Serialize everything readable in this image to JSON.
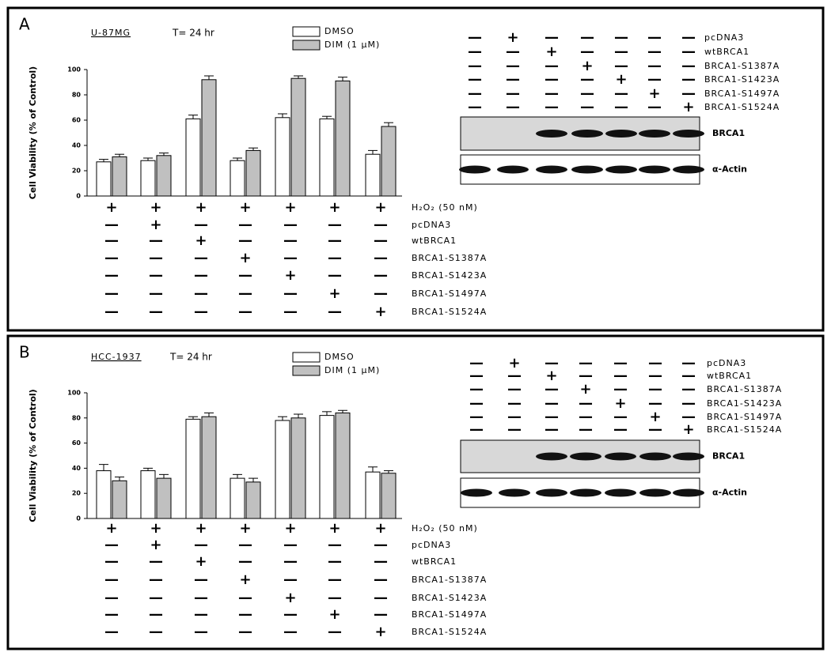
{
  "chart_data": [
    {
      "type": "bar",
      "panel_label": "A",
      "cell_line": "U-87MG",
      "time_label": "T= 24 hr",
      "ylabel": "Cell Viability (% of Control)",
      "series": [
        {
          "name": "DMSO",
          "color": "#ffffff",
          "values": [
            27,
            28,
            61,
            28,
            62,
            61,
            33
          ],
          "errors": [
            2,
            2,
            3,
            2,
            3,
            2,
            3
          ]
        },
        {
          "name": "DIM (1 μM)",
          "color": "#c0c0c0",
          "values": [
            31,
            32,
            92,
            36,
            93,
            91,
            55
          ],
          "errors": [
            2,
            2,
            3,
            2,
            2,
            3,
            3
          ]
        }
      ],
      "ylim": [
        0,
        100
      ],
      "yticks": [
        0,
        20,
        40,
        60,
        80,
        100
      ],
      "treatments": {
        "labels": [
          "H₂O₂ (50 nM)",
          "pcDNA3",
          "wtBRCA1",
          "BRCA1-S1387A",
          "BRCA1-S1423A",
          "BRCA1-S1497A",
          "BRCA1-S1524A"
        ],
        "signs": [
          [
            "+",
            "+",
            "+",
            "+",
            "+",
            "+",
            "+"
          ],
          [
            "—",
            "+",
            "—",
            "—",
            "—",
            "—",
            "—"
          ],
          [
            "—",
            "—",
            "+",
            "—",
            "—",
            "—",
            "—"
          ],
          [
            "—",
            "—",
            "—",
            "+",
            "—",
            "—",
            "—"
          ],
          [
            "—",
            "—",
            "—",
            "—",
            "+",
            "—",
            "—"
          ],
          [
            "—",
            "—",
            "—",
            "—",
            "—",
            "+",
            "—"
          ],
          [
            "—",
            "—",
            "—",
            "—",
            "—",
            "—",
            "+"
          ]
        ]
      },
      "blot": {
        "labels": [
          "pcDNA3",
          "wtBRCA1",
          "BRCA1-S1387A",
          "BRCA1-S1423A",
          "BRCA1-S1497A",
          "BRCA1-S1524A"
        ],
        "signs": [
          [
            "—",
            "+",
            "—",
            "—",
            "—",
            "—",
            "—"
          ],
          [
            "—",
            "—",
            "+",
            "—",
            "—",
            "—",
            "—"
          ],
          [
            "—",
            "—",
            "—",
            "+",
            "—",
            "—",
            "—"
          ],
          [
            "—",
            "—",
            "—",
            "—",
            "+",
            "—",
            "—"
          ],
          [
            "—",
            "—",
            "—",
            "—",
            "—",
            "+",
            "—"
          ],
          [
            "—",
            "—",
            "—",
            "—",
            "—",
            "—",
            "+"
          ]
        ],
        "bands": [
          "BRCA1",
          "α-Actin"
        ]
      }
    },
    {
      "type": "bar",
      "panel_label": "B",
      "cell_line": "HCC-1937",
      "time_label": "T= 24 hr",
      "ylabel": "Cell Viability (% of Control)",
      "series": [
        {
          "name": "DMSO",
          "color": "#ffffff",
          "values": [
            38,
            38,
            79,
            32,
            78,
            82,
            37
          ],
          "errors": [
            5,
            2,
            2,
            3,
            3,
            3,
            4
          ]
        },
        {
          "name": "DIM (1 μM)",
          "color": "#c0c0c0",
          "values": [
            30,
            32,
            81,
            29,
            80,
            84,
            36
          ],
          "errors": [
            3,
            3,
            3,
            3,
            3,
            2,
            2
          ]
        }
      ],
      "ylim": [
        0,
        100
      ],
      "yticks": [
        0,
        20,
        40,
        60,
        80,
        100
      ],
      "treatments": {
        "labels": [
          "H₂O₂ (50 nM)",
          "pcDNA3",
          "wtBRCA1",
          "BRCA1-S1387A",
          "BRCA1-S1423A",
          "BRCA1-S1497A",
          "BRCA1-S1524A"
        ],
        "signs": [
          [
            "+",
            "+",
            "+",
            "+",
            "+",
            "+",
            "+"
          ],
          [
            "—",
            "+",
            "—",
            "—",
            "—",
            "—",
            "—"
          ],
          [
            "—",
            "—",
            "+",
            "—",
            "—",
            "—",
            "—"
          ],
          [
            "—",
            "—",
            "—",
            "+",
            "—",
            "—",
            "—"
          ],
          [
            "—",
            "—",
            "—",
            "—",
            "+",
            "—",
            "—"
          ],
          [
            "—",
            "—",
            "—",
            "—",
            "—",
            "+",
            "—"
          ],
          [
            "—",
            "—",
            "—",
            "—",
            "—",
            "—",
            "+"
          ]
        ]
      },
      "blot": {
        "labels": [
          "pcDNA3",
          "wtBRCA1",
          "BRCA1-S1387A",
          "BRCA1-S1423A",
          "BRCA1-S1497A",
          "BRCA1-S1524A"
        ],
        "signs": [
          [
            "—",
            "+",
            "—",
            "—",
            "—",
            "—",
            "—"
          ],
          [
            "—",
            "—",
            "+",
            "—",
            "—",
            "—",
            "—"
          ],
          [
            "—",
            "—",
            "—",
            "+",
            "—",
            "—",
            "—"
          ],
          [
            "—",
            "—",
            "—",
            "—",
            "+",
            "—",
            "—"
          ],
          [
            "—",
            "—",
            "—",
            "—",
            "—",
            "+",
            "—"
          ],
          [
            "—",
            "—",
            "—",
            "—",
            "—",
            "—",
            "+"
          ]
        ],
        "bands": [
          "BRCA1",
          "α-Actin"
        ]
      }
    }
  ]
}
